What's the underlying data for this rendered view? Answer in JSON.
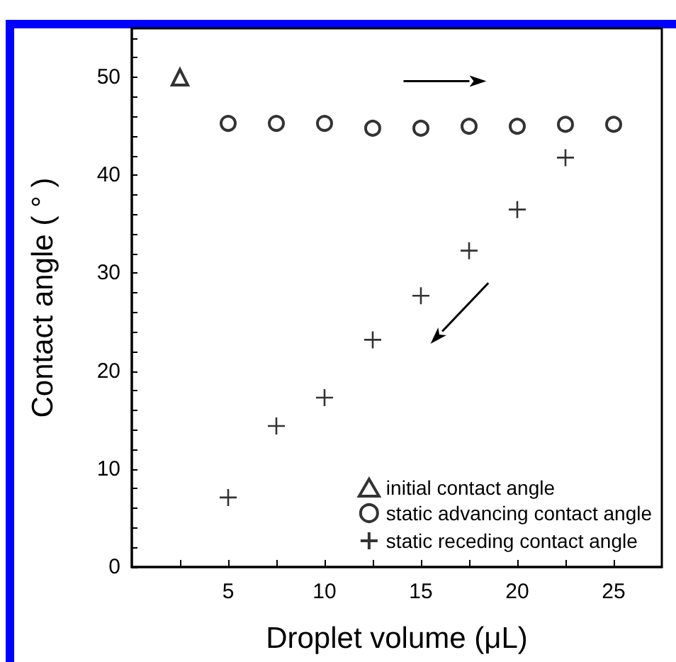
{
  "chart_data": {
    "type": "scatter",
    "xlabel": "Droplet volume (μL)",
    "ylabel": "Contact angle ( ° )",
    "xlim": [
      0,
      27.5
    ],
    "ylim": [
      0,
      55
    ],
    "xticks": [
      {
        "value": 2.5,
        "label": null
      },
      5,
      {
        "value": 7.5,
        "label": null
      },
      10,
      {
        "value": 12.5,
        "label": null
      },
      15,
      {
        "value": 17.5,
        "label": null
      },
      20,
      {
        "value": 22.5,
        "label": null
      },
      25
    ],
    "yticks": [
      0,
      {
        "value": 2,
        "label": null
      },
      {
        "value": 4,
        "label": null
      },
      {
        "value": 6,
        "label": null
      },
      {
        "value": 8,
        "label": null
      },
      10,
      {
        "value": 12,
        "label": null
      },
      {
        "value": 14,
        "label": null
      },
      {
        "value": 16,
        "label": null
      },
      {
        "value": 18,
        "label": null
      },
      20,
      {
        "value": 22,
        "label": null
      },
      {
        "value": 24,
        "label": null
      },
      {
        "value": 26,
        "label": null
      },
      {
        "value": 28,
        "label": null
      },
      30,
      {
        "value": 32,
        "label": null
      },
      {
        "value": 34,
        "label": null
      },
      {
        "value": 36,
        "label": null
      },
      {
        "value": 38,
        "label": null
      },
      40,
      {
        "value": 42,
        "label": null
      },
      {
        "value": 44,
        "label": null
      },
      {
        "value": 46,
        "label": null
      },
      {
        "value": 48,
        "label": null
      },
      50,
      {
        "value": 52,
        "label": null
      },
      {
        "value": 54,
        "label": null
      }
    ],
    "grid": false,
    "legend": "bottom right",
    "series": [
      {
        "name": "initial contact angle",
        "color": "#000000",
        "marker": "triangle",
        "x": [
          2.5
        ],
        "values": [
          50
        ]
      },
      {
        "name": "static advancing contact angle",
        "color": "#000000",
        "marker": "circle",
        "x": [
          5,
          7.5,
          10,
          12.5,
          15,
          17.5,
          20,
          22.5,
          25
        ],
        "values": [
          45.3,
          45.3,
          45.3,
          44.8,
          44.8,
          45.0,
          45.0,
          45.2,
          45.2
        ]
      },
      {
        "name": "static receding contact angle",
        "color": "#000000",
        "marker": "cross",
        "x": [
          5,
          7.5,
          10,
          12.5,
          15,
          17.5,
          20,
          22.5
        ],
        "values": [
          7.1,
          14.4,
          17.3,
          23.2,
          27.7,
          32.3,
          36.5,
          41.8
        ]
      }
    ]
  }
}
